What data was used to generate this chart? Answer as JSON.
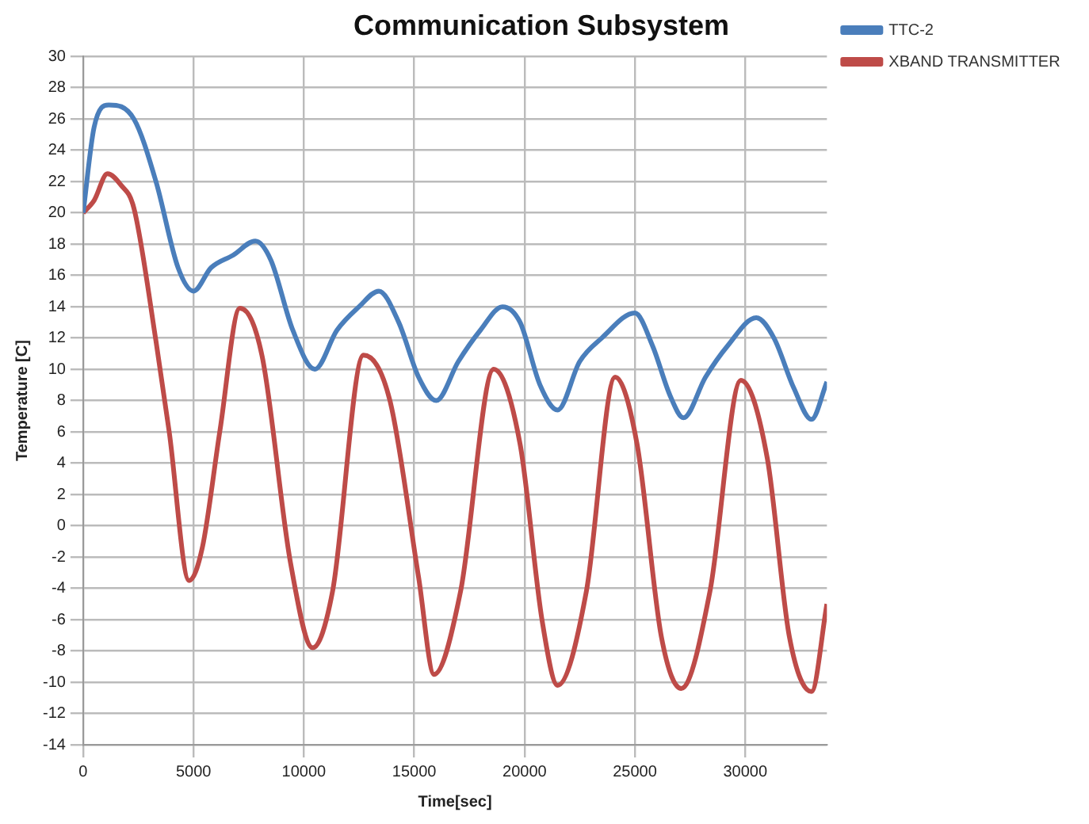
{
  "chart_data": {
    "type": "line",
    "title": "Communication Subsystem",
    "xlabel": "Time[sec]",
    "ylabel": "Temperature [C]",
    "xlim": [
      0,
      33700
    ],
    "xticks": [
      0,
      5000,
      10000,
      15000,
      20000,
      25000,
      30000
    ],
    "ylim": [
      -14,
      30
    ],
    "yticks": [
      -14,
      -12,
      -10,
      -8,
      -6,
      -4,
      -2,
      0,
      2,
      4,
      6,
      8,
      10,
      12,
      14,
      16,
      18,
      20,
      22,
      24,
      26,
      28,
      30
    ],
    "grid": true,
    "legend": "right",
    "marker": "none",
    "line_style": "solid",
    "series": [
      {
        "name": "TTC-2",
        "color": "#4a7ebb",
        "x": [
          0,
          500,
          1160,
          2300,
          3300,
          4300,
          5000,
          5800,
          6800,
          7800,
          8500,
          9500,
          10500,
          11500,
          12500,
          13400,
          14300,
          15200,
          16000,
          17000,
          18000,
          19000,
          19800,
          20700,
          21500,
          22500,
          23500,
          25000,
          25800,
          26600,
          27200,
          28200,
          29200,
          30500,
          31300,
          32200,
          33000,
          33700
        ],
        "values": [
          20,
          25.5,
          26.9,
          26,
          22,
          16.5,
          15,
          16.5,
          17.3,
          18.2,
          17,
          12.5,
          10,
          12.5,
          14,
          15,
          13,
          9.5,
          8,
          10.5,
          12.5,
          14,
          13,
          9,
          7.4,
          10.5,
          12,
          13.6,
          11.5,
          8.3,
          6.9,
          9.5,
          11.5,
          13.3,
          12,
          8.8,
          6.8,
          9.2
        ]
      },
      {
        "name": "XBAND TRANSMITTER",
        "color": "#be4b48",
        "x": [
          0,
          500,
          1100,
          1700,
          2300,
          3300,
          3900,
          4800,
          5400,
          6200,
          7100,
          8100,
          9400,
          10400,
          11300,
          12700,
          13900,
          15200,
          15900,
          17100,
          18600,
          19800,
          20800,
          21500,
          22800,
          24100,
          25100,
          26200,
          27100,
          28400,
          29800,
          31000,
          32000,
          33000,
          33700
        ],
        "values": [
          20,
          20.8,
          22.5,
          21.8,
          20.3,
          11.8,
          6,
          -3.5,
          -1.4,
          6.1,
          13.9,
          10.9,
          -2.4,
          -7.8,
          -4.2,
          10.9,
          8,
          -3.3,
          -9.5,
          -4.2,
          10,
          5.2,
          -6.1,
          -10.2,
          -4.2,
          9.5,
          5.2,
          -7.1,
          -10.4,
          -4.2,
          9.3,
          4.3,
          -7.1,
          -10.6,
          -5
        ]
      }
    ]
  }
}
